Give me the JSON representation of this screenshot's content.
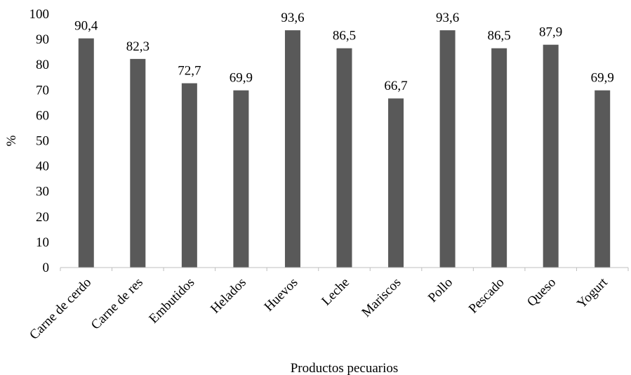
{
  "chart_data": {
    "type": "bar",
    "categories": [
      "Carne de cerdo",
      "Carne de res",
      "Embutidos",
      "Helados",
      "Huevos",
      "Leche",
      "Mariscos",
      "Pollo",
      "Pescado",
      "Queso",
      "Yogurt"
    ],
    "values": [
      90.4,
      82.3,
      72.7,
      69.9,
      93.6,
      86.5,
      66.7,
      93.6,
      86.5,
      87.9,
      69.9
    ],
    "value_labels": [
      "90,4",
      "82,3",
      "72,7",
      "69,9",
      "93,6",
      "86,5",
      "66,7",
      "93,6",
      "86,5",
      "87,9",
      "69,9"
    ],
    "title": "",
    "xlabel": "Productos pecuarios",
    "ylabel": "%",
    "ylim": [
      0,
      100
    ],
    "yticks": [
      0,
      10,
      20,
      30,
      40,
      50,
      60,
      70,
      80,
      90,
      100
    ],
    "grid": false,
    "legend": "none",
    "bar_color": "#595959"
  }
}
